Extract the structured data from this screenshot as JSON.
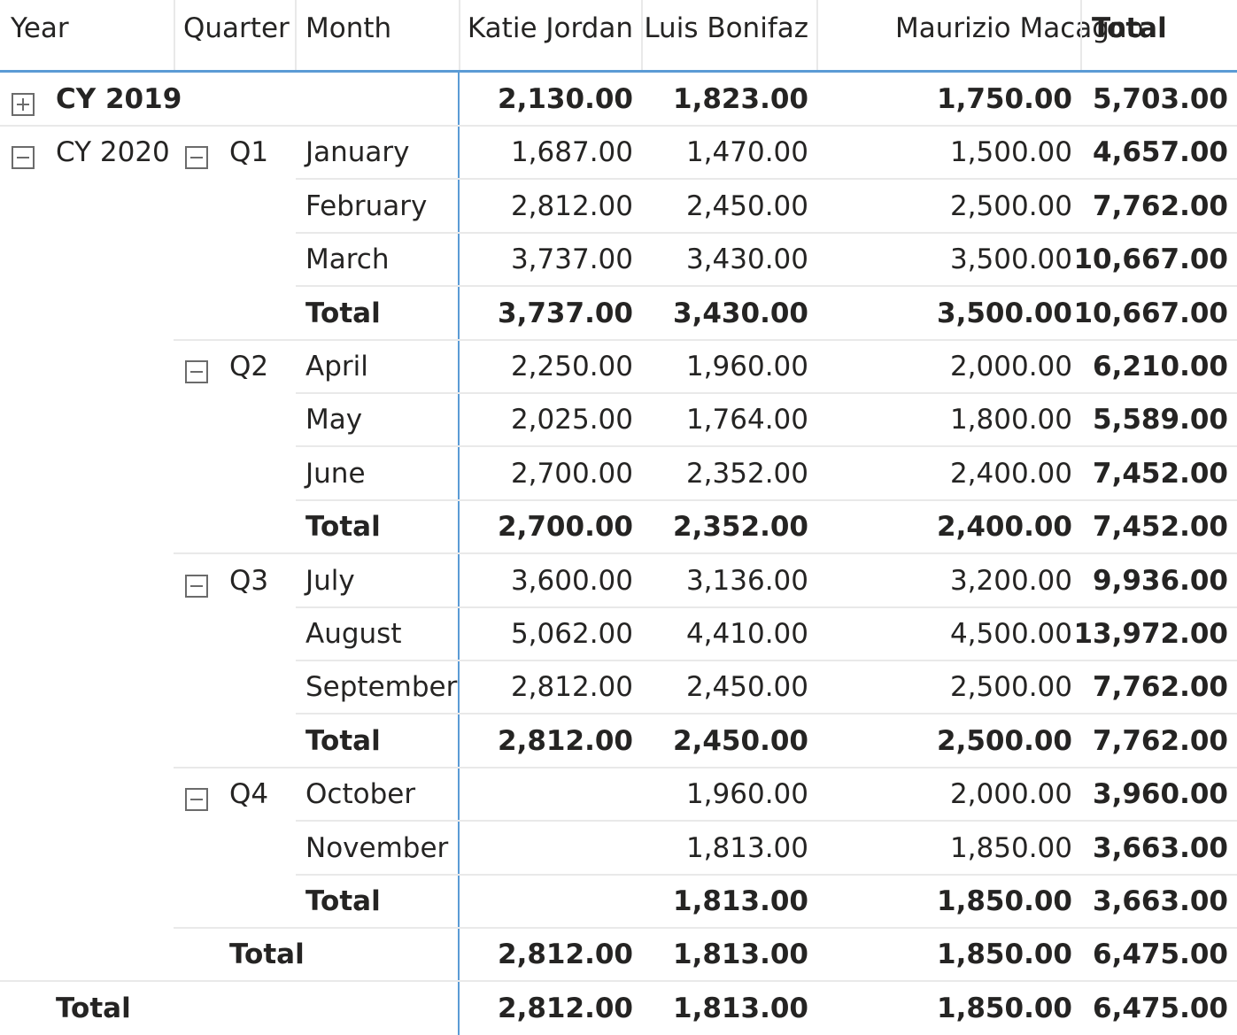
{
  "headers": {
    "year": "Year",
    "quarter": "Quarter",
    "month": "Month",
    "katie": "Katie Jordan",
    "luis": "Luis Bonifaz",
    "maurizio": "Maurizio Macagno",
    "total": "Total"
  },
  "rows": [
    {
      "kind": "year",
      "label": "CY 2019",
      "expander": "plus",
      "katie": "2,130.00",
      "luis": "1,823.00",
      "maurizio": "1,750.00",
      "total": "5,703.00"
    },
    {
      "kind": "month",
      "year": "CY 2020",
      "year_expander": "minus",
      "quarter": "Q1",
      "quarter_expander": "minus",
      "label": "January",
      "katie": "1,687.00",
      "luis": "1,470.00",
      "maurizio": "1,500.00",
      "total": "4,657.00"
    },
    {
      "kind": "month",
      "label": "February",
      "katie": "2,812.00",
      "luis": "2,450.00",
      "maurizio": "2,500.00",
      "total": "7,762.00"
    },
    {
      "kind": "month",
      "label": "March",
      "katie": "3,737.00",
      "luis": "3,430.00",
      "maurizio": "3,500.00",
      "total": "10,667.00"
    },
    {
      "kind": "qtotal",
      "label": "Total",
      "katie": "3,737.00",
      "luis": "3,430.00",
      "maurizio": "3,500.00",
      "total": "10,667.00"
    },
    {
      "kind": "month",
      "quarter": "Q2",
      "quarter_expander": "minus",
      "label": "April",
      "katie": "2,250.00",
      "luis": "1,960.00",
      "maurizio": "2,000.00",
      "total": "6,210.00"
    },
    {
      "kind": "month",
      "label": "May",
      "katie": "2,025.00",
      "luis": "1,764.00",
      "maurizio": "1,800.00",
      "total": "5,589.00"
    },
    {
      "kind": "month",
      "label": "June",
      "katie": "2,700.00",
      "luis": "2,352.00",
      "maurizio": "2,400.00",
      "total": "7,452.00"
    },
    {
      "kind": "qtotal",
      "label": "Total",
      "katie": "2,700.00",
      "luis": "2,352.00",
      "maurizio": "2,400.00",
      "total": "7,452.00"
    },
    {
      "kind": "month",
      "quarter": "Q3",
      "quarter_expander": "minus",
      "label": "July",
      "katie": "3,600.00",
      "luis": "3,136.00",
      "maurizio": "3,200.00",
      "total": "9,936.00"
    },
    {
      "kind": "month",
      "label": "August",
      "katie": "5,062.00",
      "luis": "4,410.00",
      "maurizio": "4,500.00",
      "total": "13,972.00"
    },
    {
      "kind": "month",
      "label": "September",
      "katie": "2,812.00",
      "luis": "2,450.00",
      "maurizio": "2,500.00",
      "total": "7,762.00"
    },
    {
      "kind": "qtotal",
      "label": "Total",
      "katie": "2,812.00",
      "luis": "2,450.00",
      "maurizio": "2,500.00",
      "total": "7,762.00"
    },
    {
      "kind": "month",
      "quarter": "Q4",
      "quarter_expander": "minus",
      "label": "October",
      "katie": "",
      "luis": "1,960.00",
      "maurizio": "2,000.00",
      "total": "3,960.00"
    },
    {
      "kind": "month",
      "label": "November",
      "katie": "",
      "luis": "1,813.00",
      "maurizio": "1,850.00",
      "total": "3,663.00"
    },
    {
      "kind": "qtotal",
      "label": "Total",
      "katie": "",
      "luis": "1,813.00",
      "maurizio": "1,850.00",
      "total": "3,663.00"
    },
    {
      "kind": "ytotal",
      "label": "Total",
      "katie": "2,812.00",
      "luis": "1,813.00",
      "maurizio": "1,850.00",
      "total": "6,475.00"
    },
    {
      "kind": "gtotal",
      "label": "Total",
      "katie": "2,812.00",
      "luis": "1,813.00",
      "maurizio": "1,850.00",
      "total": "6,475.00"
    }
  ]
}
